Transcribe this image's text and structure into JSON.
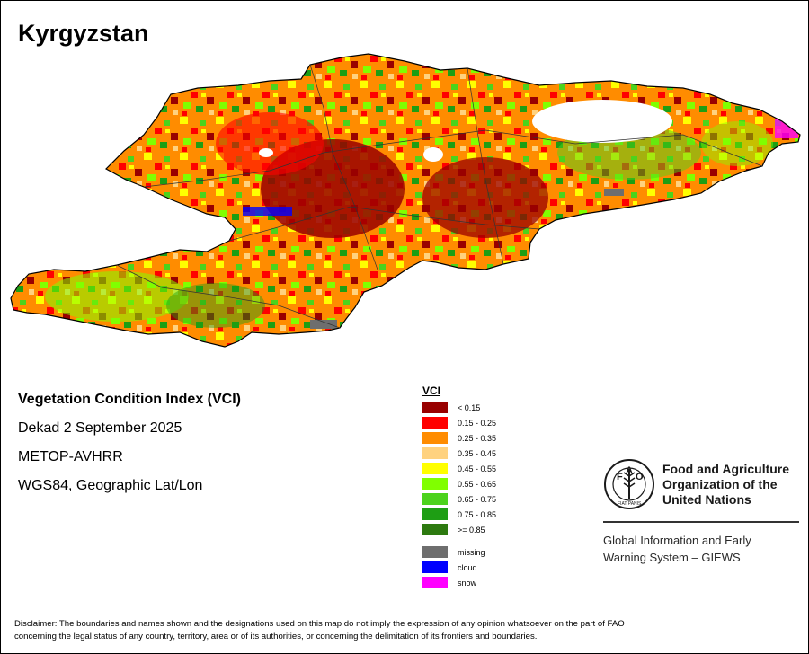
{
  "title": "Kyrgyzstan",
  "info": {
    "line1": "Vegetation Condition Index (VCI)",
    "line2": "Dekad 2 September 2025",
    "line3": "METOP-AVHRR",
    "line4": "WGS84, Geographic Lat/Lon"
  },
  "legend": {
    "title": "VCI",
    "classes": [
      {
        "label": "< 0.15",
        "color": "#990000"
      },
      {
        "label": "0.15 - 0.25",
        "color": "#ff0000"
      },
      {
        "label": "0.25 - 0.35",
        "color": "#ff8c00"
      },
      {
        "label": "0.35 - 0.45",
        "color": "#ffd27f"
      },
      {
        "label": "0.45 - 0.55",
        "color": "#ffff00"
      },
      {
        "label": "0.55 - 0.65",
        "color": "#80ff00"
      },
      {
        "label": "0.65 - 0.75",
        "color": "#4cd31c"
      },
      {
        "label": "0.75 - 0.85",
        "color": "#1e9e14"
      },
      {
        "label": ">= 0.85",
        "color": "#2d7a10"
      }
    ],
    "extras": [
      {
        "label": "missing",
        "color": "#6e6e6e"
      },
      {
        "label": "cloud",
        "color": "#0000ff"
      },
      {
        "label": "snow",
        "color": "#ff00ff"
      }
    ]
  },
  "org": {
    "logo_letters": "FAO",
    "logo_motto": "FIAT PANIS",
    "name_line1": "Food and Agriculture",
    "name_line2": "Organization of the",
    "name_line3": "United Nations",
    "giews_line1": "Global Information and Early",
    "giews_line2": "Warning System – GIEWS"
  },
  "disclaimer": {
    "line1": "Disclaimer: The boundaries and names shown and the designations used on this map do not imply the expression of any opinion whatsoever on the part of FAO",
    "line2": "concerning the legal status of any country, territory, area or of its authorities, or concerning the delimitation of its frontiers and boundaries."
  }
}
